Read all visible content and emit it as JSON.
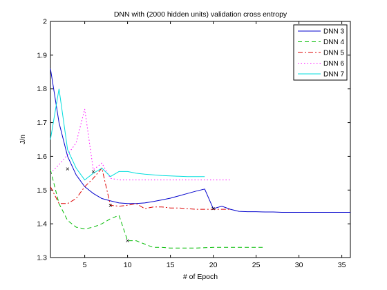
{
  "chart_data": {
    "type": "line",
    "title": "DNN with (2000 hidden units) validation cross entropy",
    "xlabel": "# of Epoch",
    "ylabel": "J/n",
    "xlim": [
      1,
      36
    ],
    "ylim": [
      1.3,
      2.0
    ],
    "xticks": [
      "5",
      "10",
      "15",
      "20",
      "25",
      "30",
      "35"
    ],
    "xtick_values": [
      5,
      10,
      15,
      20,
      25,
      30,
      35
    ],
    "yticks": [
      "1.3",
      "1.4",
      "1.5",
      "1.6",
      "1.7",
      "1.8",
      "1.9",
      "2"
    ],
    "ytick_values": [
      1.3,
      1.4,
      1.5,
      1.6,
      1.7,
      1.8,
      1.9,
      2.0
    ],
    "grid": false,
    "legend_position": "top-right",
    "series": [
      {
        "name": "DNN 3",
        "color": "#0000cc",
        "style": "solid",
        "x": [
          1,
          2,
          3,
          4,
          5,
          6,
          7,
          8,
          9,
          10,
          11,
          12,
          13,
          14,
          15,
          16,
          17,
          18,
          19,
          20,
          21,
          22,
          23,
          24,
          25,
          26,
          27,
          28,
          29,
          30,
          31,
          32,
          33,
          34,
          35,
          36
        ],
        "y": [
          1.86,
          1.7,
          1.6,
          1.545,
          1.51,
          1.49,
          1.475,
          1.468,
          1.462,
          1.46,
          1.46,
          1.462,
          1.466,
          1.471,
          1.476,
          1.483,
          1.49,
          1.497,
          1.503,
          1.445,
          1.452,
          1.443,
          1.437,
          1.436,
          1.436,
          1.435,
          1.435,
          1.434,
          1.434,
          1.434,
          1.434,
          1.434,
          1.434,
          1.434,
          1.434,
          1.434
        ]
      },
      {
        "name": "DNN 4",
        "color": "#00bb00",
        "style": "dashed",
        "x": [
          1,
          2,
          3,
          4,
          5,
          6,
          7,
          8,
          9,
          10,
          11,
          12,
          13,
          14,
          15,
          16,
          17,
          18,
          19,
          20,
          21,
          22,
          23,
          24,
          25,
          26
        ],
        "y": [
          1.56,
          1.46,
          1.41,
          1.39,
          1.385,
          1.39,
          1.4,
          1.415,
          1.425,
          1.35,
          1.35,
          1.34,
          1.33,
          1.33,
          1.328,
          1.328,
          1.328,
          1.328,
          1.329,
          1.33,
          1.33,
          1.33,
          1.33,
          1.33,
          1.33,
          1.33
        ]
      },
      {
        "name": "DNN 5",
        "color": "#dd0000",
        "style": "dashdot",
        "x": [
          1,
          2,
          3,
          4,
          5,
          6,
          7,
          8,
          9,
          10,
          11,
          12,
          13,
          14,
          15,
          16,
          17,
          18,
          19,
          20,
          21,
          22
        ],
        "y": [
          1.51,
          1.46,
          1.46,
          1.475,
          1.51,
          1.535,
          1.565,
          1.455,
          1.452,
          1.455,
          1.46,
          1.445,
          1.45,
          1.45,
          1.447,
          1.447,
          1.445,
          1.443,
          1.443,
          1.443,
          1.443,
          1.443
        ]
      },
      {
        "name": "DNN 6",
        "color": "#ff00ff",
        "style": "dotted",
        "x": [
          1,
          2,
          3,
          4,
          5,
          6,
          7,
          8,
          9,
          10,
          11,
          12,
          13,
          14,
          15,
          16,
          17,
          18,
          19,
          20,
          21,
          22
        ],
        "y": [
          1.55,
          1.575,
          1.605,
          1.64,
          1.74,
          1.56,
          1.58,
          1.535,
          1.53,
          1.53,
          1.53,
          1.53,
          1.53,
          1.53,
          1.53,
          1.53,
          1.53,
          1.53,
          1.53,
          1.53,
          1.53,
          1.53
        ]
      },
      {
        "name": "DNN 7",
        "color": "#00dddd",
        "style": "solid",
        "x": [
          1,
          2,
          3,
          4,
          5,
          6,
          7,
          8,
          9,
          10,
          11,
          12,
          13,
          14,
          15,
          16,
          17,
          18,
          19
        ],
        "y": [
          1.65,
          1.8,
          1.62,
          1.565,
          1.53,
          1.55,
          1.565,
          1.54,
          1.555,
          1.555,
          1.55,
          1.547,
          1.545,
          1.543,
          1.542,
          1.541,
          1.54,
          1.54,
          1.54
        ]
      }
    ],
    "markers": {
      "symbol": "×",
      "color": "#000000",
      "points": [
        [
          3,
          1.563
        ],
        [
          6,
          1.555
        ],
        [
          8,
          1.455
        ],
        [
          10,
          1.35
        ],
        [
          20,
          1.445
        ]
      ]
    }
  }
}
